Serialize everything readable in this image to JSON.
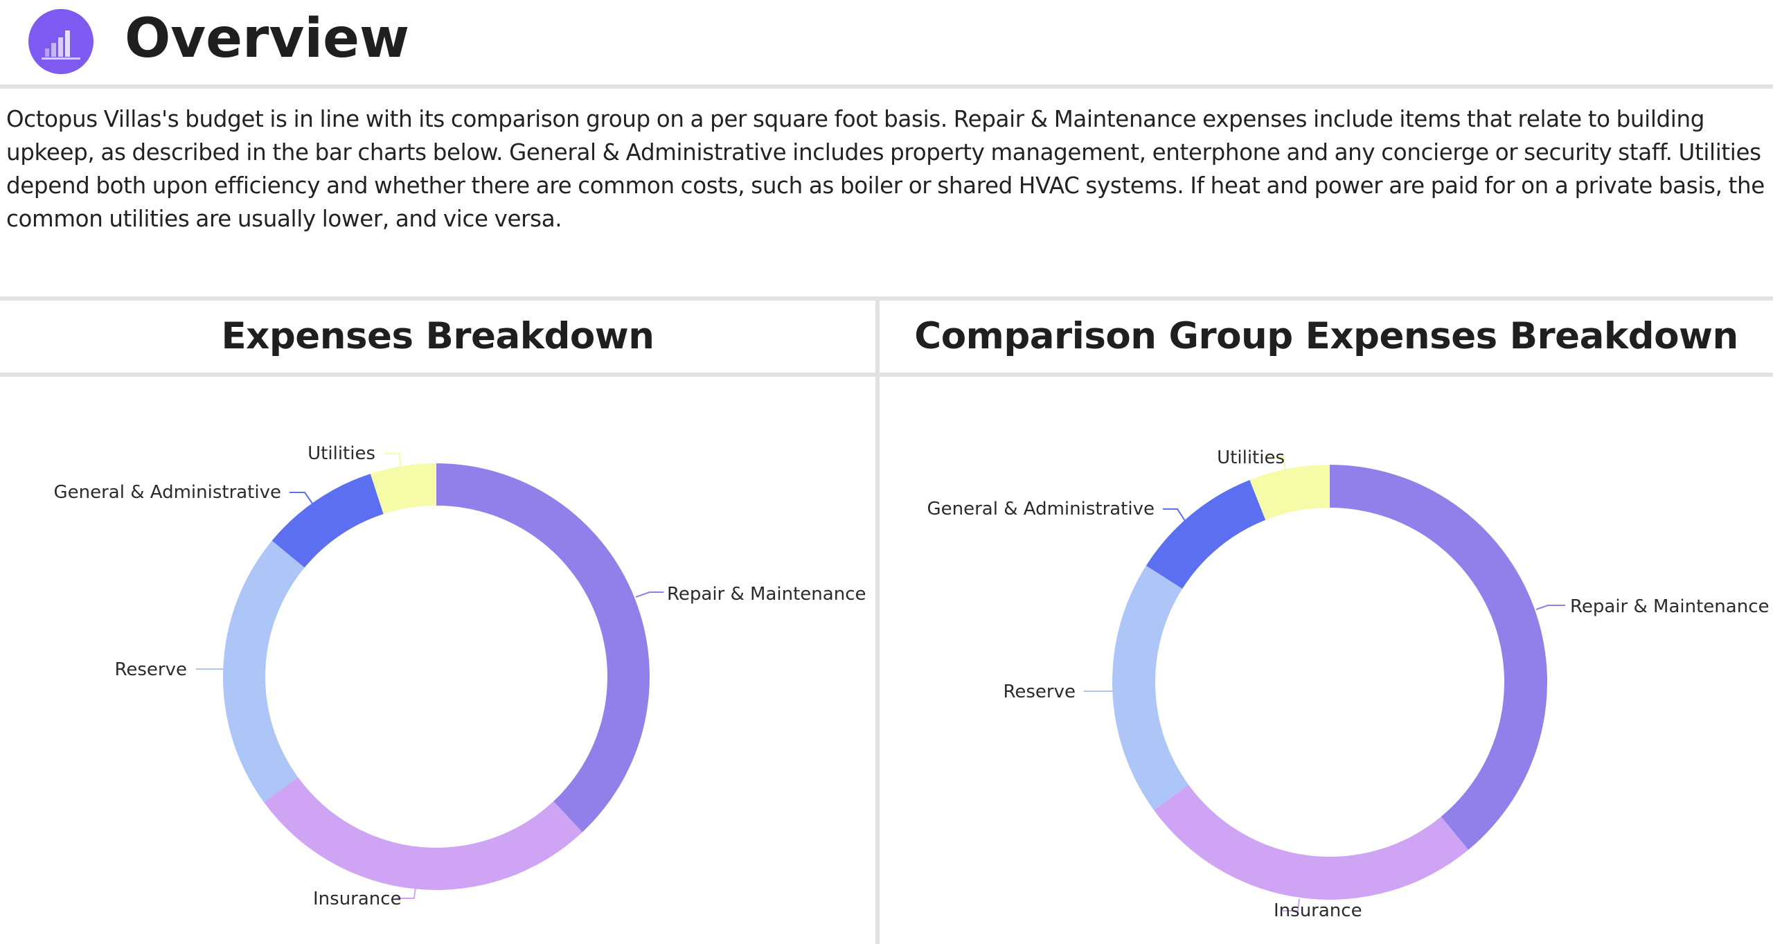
{
  "header": {
    "title": "Overview",
    "icon": "bar-chart-icon",
    "icon_color": "#7f5af0"
  },
  "description": "Octopus Villas's budget is in line with its comparison group on a per square foot basis. Repair & Maintenance expenses include items that relate to building upkeep, as described in the bar charts below. General & Administrative includes property management, enterphone and any concierge or security staff. Utilities depend both upon efficiency and whether there are common costs, such as boiler or shared HVAC systems. If heat and power are paid for on a private basis, the common utilities are usually lower, and vice versa.",
  "panels": [
    {
      "title": "Expenses Breakdown"
    },
    {
      "title": "Comparison Group Expenses Breakdown"
    }
  ],
  "colors": {
    "repair_maintenance": "#9180ea",
    "insurance": "#cfa4f5",
    "reserve": "#adc6f7",
    "general_admin": "#5b6ff0",
    "utilities": "#f6fba8",
    "divider": "#e2e2e2"
  },
  "chart_data": [
    {
      "type": "pie",
      "subtype": "donut",
      "title": "Expenses Breakdown",
      "categories": [
        "Repair & Maintenance",
        "Insurance",
        "Reserve",
        "General & Administrative",
        "Utilities"
      ],
      "values": [
        38,
        27,
        21,
        9,
        5
      ],
      "unit": "% (estimated from slice angles)",
      "start_angle": "12 o'clock, clockwise",
      "labels_outside": true
    },
    {
      "type": "pie",
      "subtype": "donut",
      "title": "Comparison Group Expenses Breakdown",
      "categories": [
        "Repair & Maintenance",
        "Insurance",
        "Reserve",
        "General & Administrative",
        "Utilities"
      ],
      "values": [
        39,
        26,
        19,
        10,
        6
      ],
      "unit": "% (estimated from slice angles)",
      "start_angle": "12 o'clock, clockwise",
      "labels_outside": true
    }
  ]
}
